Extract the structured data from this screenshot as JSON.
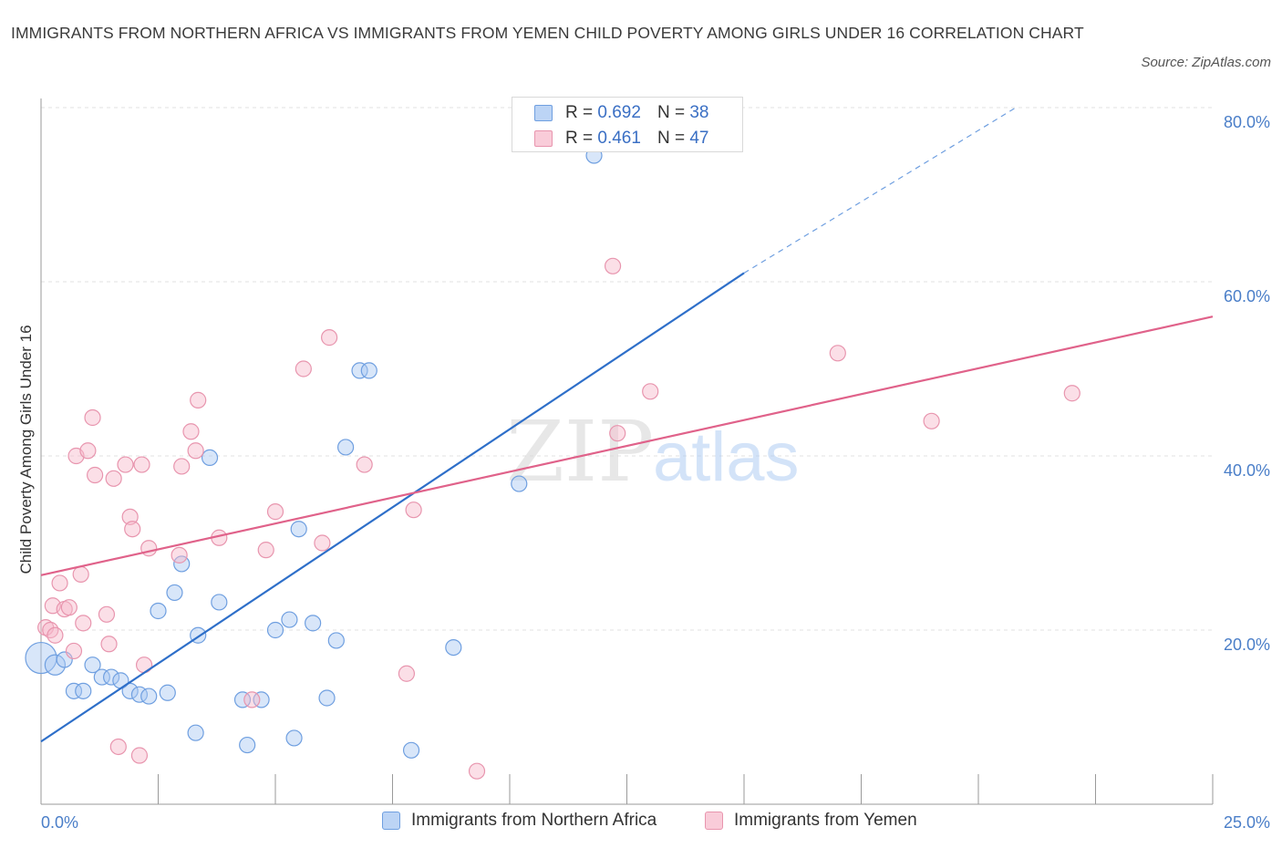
{
  "title": "IMMIGRANTS FROM NORTHERN AFRICA VS IMMIGRANTS FROM YEMEN CHILD POVERTY AMONG GIRLS UNDER 16 CORRELATION CHART",
  "source": "Source: ZipAtlas.com",
  "watermark": {
    "zip": "ZIP",
    "atlas": "atlas"
  },
  "legend": {
    "r_label": "R =",
    "n_label": "N =",
    "rows": [
      {
        "r": "0.692",
        "n": "38"
      },
      {
        "r": "0.461",
        "n": "47"
      }
    ]
  },
  "colors": {
    "blue_fill": "#a9c8f2",
    "blue_stroke": "#6f9fe0",
    "blue_line": "#2e6fc9",
    "pink_fill": "#f6b8ca",
    "pink_stroke": "#e895ae",
    "pink_line": "#e0628a",
    "tick_text": "#4a7ec8",
    "grid": "#e2e2e2"
  },
  "chart_data": {
    "type": "scatter",
    "title": "IMMIGRANTS FROM NORTHERN AFRICA VS IMMIGRANTS FROM YEMEN CHILD POVERTY AMONG GIRLS UNDER 16 CORRELATION CHART",
    "xlabel": "",
    "ylabel": "Child Poverty Among Girls Under 16",
    "xlim": [
      0,
      25
    ],
    "ylim": [
      0,
      80
    ],
    "x_tick_labels": [
      "0.0%",
      "25.0%"
    ],
    "y_ticks": [
      20,
      40,
      60,
      80
    ],
    "y_tick_labels": [
      "20.0%",
      "40.0%",
      "60.0%",
      "80.0%"
    ],
    "grid": true,
    "legend_position": "bottom",
    "series": [
      {
        "name": "Immigrants from Northern Africa",
        "color": "blue",
        "r": 0.692,
        "n": 38,
        "trend": {
          "x0": 0,
          "y0": 7.2,
          "x1": 15,
          "y1": 61.0,
          "dashed_to_x": 20.8,
          "dashed_to_y": 80
        },
        "points": [
          [
            0.0,
            16.8,
            2.0
          ],
          [
            0.3,
            16.0,
            1.3
          ],
          [
            0.5,
            16.6,
            1.0
          ],
          [
            0.7,
            13.0,
            1.0
          ],
          [
            0.9,
            13.0,
            1.0
          ],
          [
            1.1,
            16.0,
            1.0
          ],
          [
            1.3,
            14.6,
            1.0
          ],
          [
            1.5,
            14.6,
            1.0
          ],
          [
            1.7,
            14.2,
            1.0
          ],
          [
            1.9,
            13.0,
            1.0
          ],
          [
            2.1,
            12.6,
            1.0
          ],
          [
            2.3,
            12.4,
            1.0
          ],
          [
            2.5,
            22.2,
            1.0
          ],
          [
            2.7,
            12.8,
            1.0
          ],
          [
            2.85,
            24.3,
            1.0
          ],
          [
            3.0,
            27.6,
            1.0
          ],
          [
            3.3,
            8.2,
            1.0
          ],
          [
            3.35,
            19.4,
            1.0
          ],
          [
            3.6,
            39.8,
            1.0
          ],
          [
            3.8,
            23.2,
            1.0
          ],
          [
            4.3,
            12.0,
            1.0
          ],
          [
            4.4,
            6.8,
            1.0
          ],
          [
            4.7,
            12.0,
            1.0
          ],
          [
            5.0,
            20.0,
            1.0
          ],
          [
            5.3,
            21.2,
            1.0
          ],
          [
            5.4,
            7.6,
            1.0
          ],
          [
            5.5,
            31.6,
            1.0
          ],
          [
            5.8,
            20.8,
            1.0
          ],
          [
            6.1,
            12.2,
            1.0
          ],
          [
            6.3,
            18.8,
            1.0
          ],
          [
            6.5,
            41.0,
            1.0
          ],
          [
            6.8,
            49.8,
            1.0
          ],
          [
            7.0,
            49.8,
            1.0
          ],
          [
            7.9,
            6.2,
            1.0
          ],
          [
            8.8,
            18.0,
            1.0
          ],
          [
            10.2,
            36.8,
            1.0
          ],
          [
            11.8,
            74.5,
            1.0
          ],
          [
            14.6,
            78.5,
            1.0
          ]
        ]
      },
      {
        "name": "Immigrants from Yemen",
        "color": "pink",
        "r": 0.461,
        "n": 47,
        "trend": {
          "x0": 0,
          "y0": 26.3,
          "x1": 25,
          "y1": 56.0
        },
        "points": [
          [
            0.1,
            20.3,
            1.0
          ],
          [
            0.2,
            20.0,
            1.0
          ],
          [
            0.25,
            22.8,
            1.0
          ],
          [
            0.3,
            19.4,
            1.0
          ],
          [
            0.4,
            25.4,
            1.0
          ],
          [
            0.5,
            22.4,
            1.0
          ],
          [
            0.6,
            22.6,
            1.0
          ],
          [
            0.7,
            17.6,
            1.0
          ],
          [
            0.75,
            40.0,
            1.0
          ],
          [
            0.85,
            26.4,
            1.0
          ],
          [
            0.9,
            20.8,
            1.0
          ],
          [
            1.0,
            40.6,
            1.0
          ],
          [
            1.1,
            44.4,
            1.0
          ],
          [
            1.15,
            37.8,
            1.0
          ],
          [
            1.4,
            21.8,
            1.0
          ],
          [
            1.45,
            18.4,
            1.0
          ],
          [
            1.55,
            37.4,
            1.0
          ],
          [
            1.65,
            6.6,
            1.0
          ],
          [
            1.8,
            39.0,
            1.0
          ],
          [
            1.9,
            33.0,
            1.0
          ],
          [
            1.95,
            31.6,
            1.0
          ],
          [
            2.1,
            5.6,
            1.0
          ],
          [
            2.15,
            39.0,
            1.0
          ],
          [
            2.2,
            16.0,
            1.0
          ],
          [
            2.3,
            29.4,
            1.0
          ],
          [
            2.95,
            28.6,
            1.0
          ],
          [
            3.0,
            38.8,
            1.0
          ],
          [
            3.2,
            42.8,
            1.0
          ],
          [
            3.3,
            40.6,
            1.0
          ],
          [
            3.35,
            46.4,
            1.0
          ],
          [
            3.8,
            30.6,
            1.0
          ],
          [
            4.5,
            12.0,
            1.0
          ],
          [
            4.8,
            29.2,
            1.0
          ],
          [
            5.0,
            33.6,
            1.0
          ],
          [
            5.6,
            50.0,
            1.0
          ],
          [
            6.0,
            30.0,
            1.0
          ],
          [
            6.15,
            53.6,
            1.0
          ],
          [
            6.9,
            39.0,
            1.0
          ],
          [
            7.8,
            15.0,
            1.0
          ],
          [
            7.95,
            33.8,
            1.0
          ],
          [
            9.3,
            3.8,
            1.0
          ],
          [
            12.2,
            61.8,
            1.0
          ],
          [
            12.3,
            42.6,
            1.0
          ],
          [
            13.0,
            47.4,
            1.0
          ],
          [
            17.0,
            51.8,
            1.0
          ],
          [
            19.0,
            44.0,
            1.0
          ],
          [
            22.0,
            47.2,
            1.0
          ]
        ]
      }
    ]
  }
}
